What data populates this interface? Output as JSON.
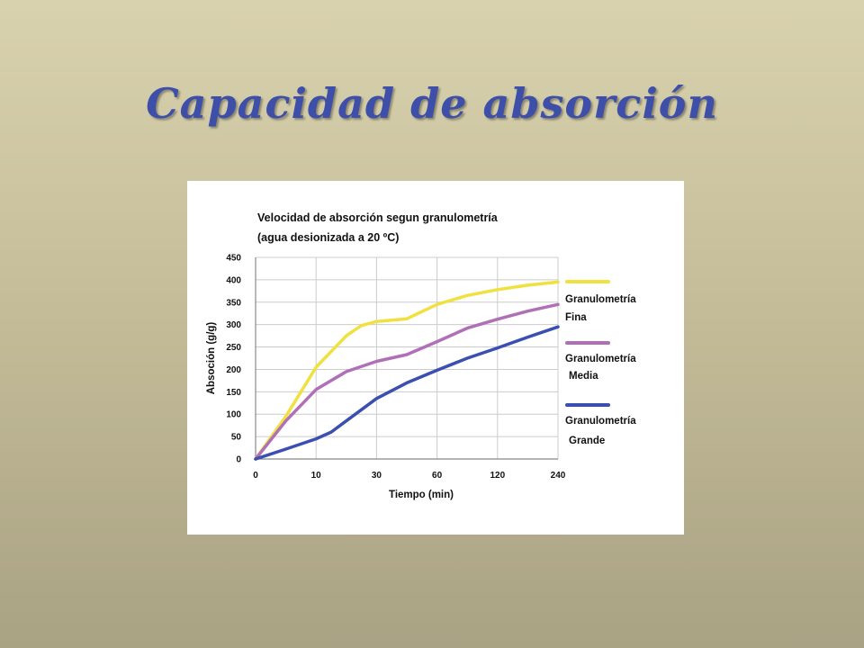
{
  "slide": {
    "title": "Capacidad de absorción"
  },
  "colors": {
    "fina": "#f0e040",
    "media": "#b070b8",
    "grande": "#3a4fb0",
    "grid": "#cccccc"
  },
  "chart_data": {
    "type": "line",
    "title": "Velocidad de absorción segun granulometría",
    "subtitle": "(agua desionizada a 20 ºC)",
    "xlabel": "Tiempo (min)",
    "ylabel": "Absoción (g/g)",
    "x_ticks": [
      "0",
      "10",
      "30",
      "60",
      "120",
      "240"
    ],
    "y_ticks": [
      "0",
      "50",
      "100",
      "150",
      "200",
      "250",
      "300",
      "350",
      "400",
      "450"
    ],
    "ylim": [
      0,
      450
    ],
    "grid": true,
    "legend_position": "right",
    "series": [
      {
        "key": "fina",
        "name_line1": "Granulometría",
        "name_line2": "Fina",
        "points": [
          [
            0,
            0
          ],
          [
            0.5,
            95
          ],
          [
            1,
            205
          ],
          [
            1.5,
            275
          ],
          [
            1.75,
            298
          ],
          [
            2,
            307
          ],
          [
            2.5,
            313
          ],
          [
            3,
            345
          ],
          [
            3.5,
            365
          ],
          [
            4,
            378
          ],
          [
            4.5,
            388
          ],
          [
            5,
            395
          ]
        ]
      },
      {
        "key": "media",
        "name_line1": "Granulometría",
        "name_line2": "Media",
        "points": [
          [
            0,
            0
          ],
          [
            0.5,
            85
          ],
          [
            1,
            155
          ],
          [
            1.5,
            195
          ],
          [
            2,
            218
          ],
          [
            2.5,
            233
          ],
          [
            3,
            262
          ],
          [
            3.5,
            292
          ],
          [
            4,
            312
          ],
          [
            4.5,
            330
          ],
          [
            5,
            345
          ]
        ]
      },
      {
        "key": "grande",
        "name_line1": "Granulometría",
        "name_line2": "Grande",
        "points": [
          [
            0,
            0
          ],
          [
            0.5,
            22
          ],
          [
            1,
            45
          ],
          [
            1.25,
            60
          ],
          [
            1.6,
            95
          ],
          [
            2,
            135
          ],
          [
            2.5,
            170
          ],
          [
            3,
            198
          ],
          [
            3.5,
            225
          ],
          [
            4,
            248
          ],
          [
            4.5,
            272
          ],
          [
            5,
            295
          ]
        ]
      }
    ]
  }
}
